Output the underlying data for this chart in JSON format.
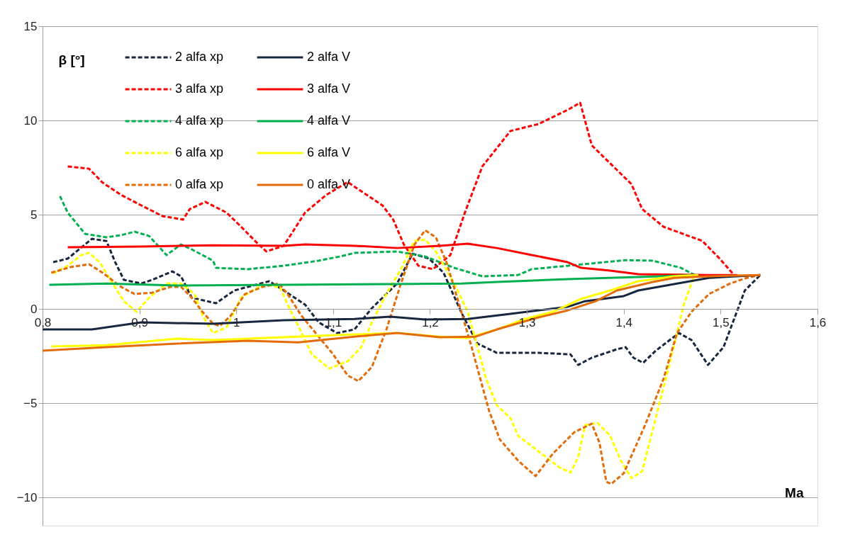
{
  "chart_data": {
    "type": "line",
    "xlabel": "Ma",
    "ylabel": "β [°]",
    "xlim": [
      0.8,
      1.6
    ],
    "ylim": [
      -11.5,
      15
    ],
    "xticks": [
      {
        "value": 0.8,
        "label": "0,8"
      },
      {
        "value": 0.9,
        "label": "0,9"
      },
      {
        "value": 1,
        "label": "1"
      },
      {
        "value": 1.1,
        "label": "1,1"
      },
      {
        "value": 1.2,
        "label": "1,2"
      },
      {
        "value": 1.3,
        "label": "1,3"
      },
      {
        "value": 1.4,
        "label": "1,4"
      },
      {
        "value": 1.5,
        "label": "1,5"
      },
      {
        "value": 1.6,
        "label": "1,6"
      }
    ],
    "yticks": [
      -10,
      -5,
      0,
      5,
      10,
      15
    ],
    "grid": "y",
    "legend": "top left",
    "series": [
      {
        "name": "2 alfa xp",
        "color": "#17273f",
        "line_style": "dashed",
        "x": [
          0.811,
          0.826,
          0.851,
          0.866,
          0.875,
          0.884,
          0.902,
          0.913,
          0.934,
          0.943,
          0.954,
          0.979,
          0.998,
          1.034,
          1.049,
          1.071,
          1.085,
          1.104,
          1.122,
          1.14,
          1.166,
          1.182,
          1.199,
          1.214,
          1.232,
          1.249,
          1.269,
          1.312,
          1.345,
          1.353,
          1.367,
          1.393,
          1.402,
          1.41,
          1.42,
          1.433,
          1.457,
          1.47,
          1.487,
          1.503,
          1.525,
          1.541
        ],
        "values": [
          2.48,
          2.67,
          3.72,
          3.6,
          2.48,
          1.54,
          1.35,
          1.54,
          1.99,
          1.73,
          0.6,
          0.3,
          0.98,
          1.47,
          0.98,
          0.23,
          -0.71,
          -1.28,
          -1.09,
          0.04,
          1.35,
          2.93,
          2.67,
          1.92,
          -0.15,
          -1.84,
          -2.33,
          -2.33,
          -2.41,
          -2.97,
          -2.59,
          -2.14,
          -2.03,
          -2.59,
          -2.86,
          -2.22,
          -1.28,
          -1.65,
          -2.97,
          -2.03,
          0.98,
          1.8
        ]
      },
      {
        "name": "3 alfa xp",
        "color": "#ff0000",
        "line_style": "dashed",
        "x": [
          0.826,
          0.848,
          0.862,
          0.881,
          0.902,
          0.924,
          0.945,
          0.952,
          0.968,
          0.99,
          1.005,
          1.023,
          1.031,
          1.049,
          1.071,
          1.093,
          1.115,
          1.151,
          1.162,
          1.173,
          1.188,
          1.203,
          1.221,
          1.236,
          1.254,
          1.283,
          1.312,
          1.342,
          1.355,
          1.36,
          1.367,
          1.393,
          1.408,
          1.419,
          1.441,
          1.481,
          1.499,
          1.514
        ],
        "values": [
          7.56,
          7.44,
          6.7,
          6.05,
          5.49,
          4.92,
          4.74,
          5.3,
          5.68,
          5.11,
          4.36,
          3.42,
          3.05,
          3.35,
          5.11,
          6.05,
          6.73,
          5.49,
          4.74,
          3.42,
          2.29,
          2.11,
          2.86,
          5.11,
          7.56,
          9.44,
          9.81,
          10.56,
          10.94,
          10.0,
          8.68,
          7.37,
          6.62,
          5.3,
          4.36,
          3.61,
          2.67,
          1.8
        ]
      },
      {
        "name": "4 alfa xp",
        "color": "#00b050",
        "line_style": "dashed",
        "x": [
          0.818,
          0.826,
          0.844,
          0.866,
          0.881,
          0.895,
          0.91,
          0.928,
          0.943,
          0.954,
          0.976,
          0.979,
          1.012,
          1.049,
          1.085,
          1.107,
          1.122,
          1.166,
          1.195,
          1.225,
          1.254,
          1.291,
          1.305,
          1.342,
          1.402,
          1.43,
          1.459,
          1.473
        ],
        "values": [
          5.98,
          5.11,
          3.98,
          3.8,
          3.91,
          4.1,
          3.87,
          2.86,
          3.42,
          3.16,
          2.56,
          2.18,
          2.11,
          2.29,
          2.56,
          2.78,
          2.97,
          3.05,
          2.78,
          2.18,
          1.73,
          1.8,
          2.11,
          2.29,
          2.59,
          2.56,
          2.18,
          1.8
        ]
      },
      {
        "name": "6 alfa xp",
        "color": "#ffff00",
        "line_style": "dashed",
        "x": [
          0.811,
          0.826,
          0.84,
          0.848,
          0.859,
          0.87,
          0.884,
          0.897,
          0.91,
          0.928,
          0.943,
          0.957,
          0.965,
          0.976,
          0.99,
          1.005,
          1.027,
          1.045,
          1.053,
          1.064,
          1.078,
          1.096,
          1.115,
          1.129,
          1.14,
          1.155,
          1.17,
          1.184,
          1.195,
          1.206,
          1.225,
          1.239,
          1.258,
          1.269,
          1.283,
          1.291,
          1.312,
          1.334,
          1.345,
          1.353,
          1.36,
          1.373,
          1.386,
          1.397,
          1.408,
          1.419,
          1.433,
          1.448,
          1.462,
          1.473
        ],
        "values": [
          1.88,
          2.29,
          2.86,
          2.97,
          2.48,
          1.54,
          0.41,
          -0.15,
          0.6,
          1.35,
          1.35,
          0.79,
          -0.34,
          -1.28,
          -0.98,
          0.6,
          1.28,
          1.17,
          0.23,
          -0.9,
          -2.41,
          -3.16,
          -2.78,
          -2.03,
          -0.71,
          0.79,
          2.11,
          3.61,
          3.68,
          3.05,
          1.35,
          -0.15,
          -3.72,
          -5.11,
          -5.79,
          -6.73,
          -7.56,
          -8.42,
          -8.68,
          -7.86,
          -6.17,
          -6.05,
          -6.73,
          -8.05,
          -8.98,
          -8.61,
          -5.79,
          -2.78,
          0.23,
          1.8
        ]
      },
      {
        "name": "0 alfa xp",
        "color": "#e36c09",
        "line_style": "dashed",
        "x": [
          0.809,
          0.829,
          0.848,
          0.862,
          0.881,
          0.895,
          0.913,
          0.932,
          0.943,
          0.954,
          0.965,
          0.976,
          0.983,
          0.994,
          1.009,
          1.027,
          1.044,
          1.053,
          1.067,
          1.085,
          1.1,
          1.115,
          1.126,
          1.14,
          1.155,
          1.17,
          1.184,
          1.195,
          1.206,
          1.217,
          1.228,
          1.243,
          1.261,
          1.272,
          1.291,
          1.309,
          1.327,
          1.349,
          1.367,
          1.375,
          1.382,
          1.387,
          1.4,
          1.422,
          1.441,
          1.455,
          1.47,
          1.488,
          1.51,
          1.525,
          1.541
        ],
        "values": [
          1.92,
          2.22,
          2.37,
          1.92,
          1.17,
          0.79,
          0.86,
          1.17,
          1.17,
          0.6,
          -0.15,
          -0.79,
          -0.9,
          -0.38,
          0.79,
          1.17,
          1.35,
          0.79,
          -0.34,
          -1.47,
          -2.41,
          -3.53,
          -3.83,
          -3.08,
          -1.09,
          1.35,
          3.42,
          4.17,
          3.8,
          2.48,
          0.6,
          -2.03,
          -5.41,
          -6.92,
          -8.05,
          -8.87,
          -7.67,
          -6.54,
          -6.09,
          -7.11,
          -9.17,
          -9.29,
          -8.72,
          -6.17,
          -3.72,
          -1.28,
          -0.15,
          0.79,
          1.35,
          1.62,
          1.8
        ]
      },
      {
        "name": "2 alfa V",
        "color": "#17273f",
        "line_style": "solid",
        "x": [
          0.8,
          0.851,
          0.902,
          0.976,
          1.049,
          1.122,
          1.159,
          1.195,
          1.239,
          1.283,
          1.342,
          1.36,
          1.4,
          1.415,
          1.488,
          1.541
        ],
        "values": [
          -1.09,
          -1.09,
          -0.71,
          -0.79,
          -0.6,
          -0.53,
          -0.41,
          -0.56,
          -0.53,
          -0.26,
          0.11,
          0.41,
          0.68,
          0.98,
          1.65,
          1.8
        ]
      },
      {
        "name": "3 alfa V",
        "color": "#ff0000",
        "line_style": "solid",
        "x": [
          0.826,
          0.902,
          0.976,
          1.049,
          1.071,
          1.122,
          1.166,
          1.21,
          1.239,
          1.269,
          1.305,
          1.342,
          1.356,
          1.386,
          1.415,
          1.488,
          1.517
        ],
        "values": [
          3.27,
          3.31,
          3.38,
          3.35,
          3.42,
          3.35,
          3.23,
          3.35,
          3.46,
          3.23,
          2.86,
          2.48,
          2.18,
          2.03,
          1.84,
          1.8,
          1.8
        ]
      },
      {
        "name": "4 alfa V",
        "color": "#00b050",
        "line_style": "solid",
        "x": [
          0.807,
          0.866,
          0.939,
          1.049,
          1.159,
          1.232,
          1.269,
          1.342,
          1.415,
          1.477
        ],
        "values": [
          1.28,
          1.35,
          1.24,
          1.28,
          1.32,
          1.35,
          1.43,
          1.58,
          1.69,
          1.8
        ]
      },
      {
        "name": "6 alfa V",
        "color": "#ffff00",
        "line_style": "solid",
        "x": [
          0.809,
          0.866,
          0.939,
          0.976,
          1.049,
          1.122,
          1.166,
          1.21,
          1.239,
          1.269,
          1.298,
          1.327,
          1.356,
          1.386,
          1.415,
          1.452,
          1.477
        ],
        "values": [
          -1.99,
          -1.92,
          -1.58,
          -1.65,
          -1.5,
          -1.35,
          -1.28,
          -1.47,
          -1.55,
          -1.09,
          -0.53,
          -0.15,
          0.53,
          0.98,
          1.47,
          1.73,
          1.8
        ]
      },
      {
        "name": "0 alfa V",
        "color": "#e36c09",
        "line_style": "solid",
        "x": [
          0.8,
          0.866,
          0.939,
          1.012,
          1.064,
          1.122,
          1.166,
          1.21,
          1.247,
          1.269,
          1.312,
          1.342,
          1.371,
          1.393,
          1.43,
          1.452,
          1.488,
          1.541
        ],
        "values": [
          -2.22,
          -2.03,
          -1.84,
          -1.69,
          -1.77,
          -1.47,
          -1.28,
          -1.5,
          -1.47,
          -1.09,
          -0.45,
          -0.08,
          0.41,
          0.98,
          1.43,
          1.65,
          1.73,
          1.8
        ]
      }
    ]
  }
}
